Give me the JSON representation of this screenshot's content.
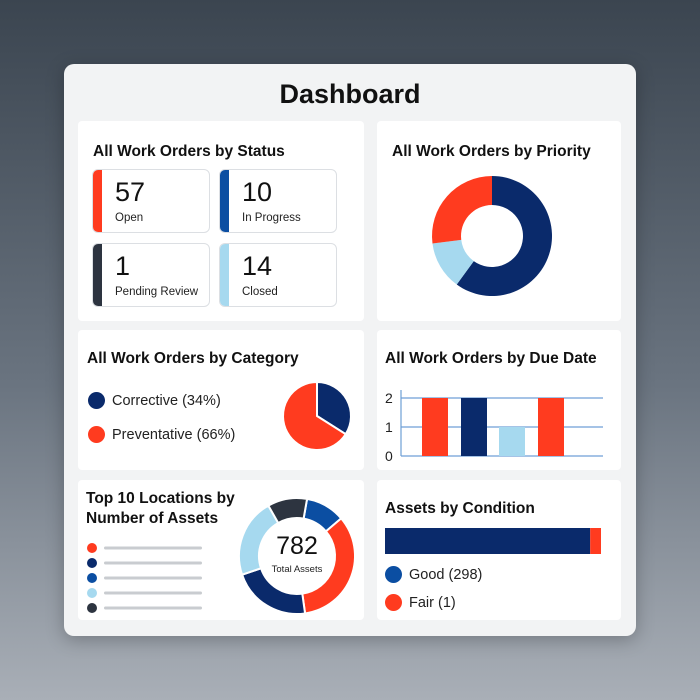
{
  "dashboard": {
    "title": "Dashboard"
  },
  "status_card": {
    "title": "All Work Orders by Status",
    "items": [
      {
        "value": "57",
        "label": "Open",
        "color": "#ff3b1f"
      },
      {
        "value": "10",
        "label": "In Progress",
        "color": "#0b4ea2"
      },
      {
        "value": "1",
        "label": "Pending Review",
        "color": "#2d3440"
      },
      {
        "value": "14",
        "label": "Closed",
        "color": "#a6d9ef"
      }
    ]
  },
  "priority_card": {
    "title": "All Work Orders by Priority",
    "chart_data": {
      "type": "pie",
      "donut": true,
      "slices": [
        {
          "value": 60,
          "color": "#0a2a6b"
        },
        {
          "value": 13,
          "color": "#a6d9ef"
        },
        {
          "value": 27,
          "color": "#ff3b1f"
        }
      ]
    }
  },
  "category_card": {
    "title": "All Work Orders by Category",
    "legend": [
      {
        "label": "Corrective (34%)",
        "color": "#0a2a6b"
      },
      {
        "label": "Preventative (66%)",
        "color": "#ff3b1f"
      }
    ],
    "chart_data": {
      "type": "pie",
      "slices": [
        {
          "value": 34,
          "color": "#0a2a6b"
        },
        {
          "value": 66,
          "color": "#ff3b1f"
        }
      ]
    }
  },
  "due_date_card": {
    "title": "All Work Orders by Due Date",
    "chart_data": {
      "type": "bar",
      "values": [
        2,
        2,
        1,
        2
      ],
      "colors": [
        "#ff3b1f",
        "#0a2a6b",
        "#a6d9ef",
        "#ff3b1f"
      ],
      "ylim": [
        0,
        2
      ],
      "yticks": [
        "0",
        "1",
        "2"
      ]
    }
  },
  "locations_card": {
    "title_line1": "Top 10 Locations by",
    "title_line2": "Number of Assets",
    "total_value": "782",
    "total_label": "Total Assets",
    "legend_colors": [
      "#ff3b1f",
      "#0a2a6b",
      "#0b4ea2",
      "#a6d9ef",
      "#2d3440"
    ],
    "chart_data": {
      "type": "pie",
      "donut": true,
      "slices": [
        {
          "value": 11,
          "color": "#0b4ea2"
        },
        {
          "value": 34,
          "color": "#ff3b1f"
        },
        {
          "value": 22,
          "color": "#0a2a6b"
        },
        {
          "value": 22,
          "color": "#a6d9ef"
        },
        {
          "value": 11,
          "color": "#2d3440"
        }
      ]
    }
  },
  "assets_condition_card": {
    "title": "Assets by Condition",
    "legend": [
      {
        "label": "Good (298)",
        "color": "#0b4ea2"
      },
      {
        "label": "Fair (1)",
        "color": "#ff3b1f"
      }
    ],
    "chart_data": {
      "type": "bar",
      "stacked": true,
      "values": [
        298,
        1
      ],
      "bar_colors": [
        "#0a2a6b",
        "#ff3b1f"
      ],
      "fractions": [
        0.95,
        0.05
      ]
    }
  }
}
